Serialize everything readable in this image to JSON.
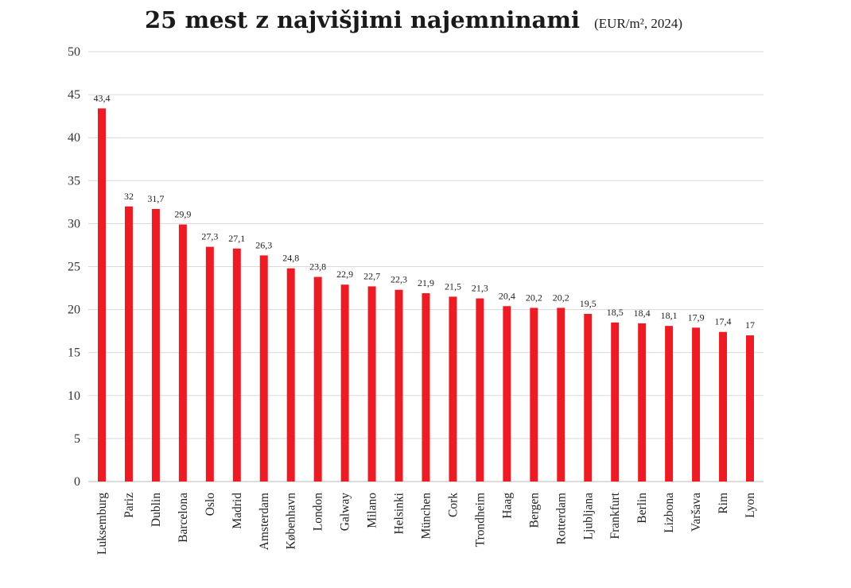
{
  "chart_data": {
    "type": "bar",
    "title": "25 mest z najvišjimi najemninami",
    "subtitle": "(EUR/m², 2024)",
    "xlabel": "",
    "ylabel": "",
    "ylim": [
      0,
      50
    ],
    "yticks": [
      0,
      5,
      10,
      15,
      20,
      25,
      30,
      35,
      40,
      45,
      50
    ],
    "grid": true,
    "bar_color": "#ED1C24",
    "categories": [
      "Luksemburg",
      "Pariz",
      "Dublin",
      "Barcelona",
      "Oslo",
      "Madrid",
      "Amsterdam",
      "København",
      "London",
      "Galway",
      "Milano",
      "Helsinki",
      "München",
      "Cork",
      "Trondheim",
      "Haag",
      "Bergen",
      "Rotterdam",
      "Ljubljana",
      "Frankfurt",
      "Berlin",
      "Lizbona",
      "Varšava",
      "Rim",
      "Lyon"
    ],
    "values": [
      43.4,
      32,
      31.7,
      29.9,
      27.3,
      27.1,
      26.3,
      24.8,
      23.8,
      22.9,
      22.7,
      22.3,
      21.9,
      21.5,
      21.3,
      20.4,
      20.2,
      20.2,
      19.5,
      18.5,
      18.4,
      18.1,
      17.9,
      17.4,
      17
    ],
    "value_labels": [
      "43,4",
      "32",
      "31,7",
      "29,9",
      "27,3",
      "27,1",
      "26,3",
      "24,8",
      "23,8",
      "22,9",
      "22,7",
      "22,3",
      "21,9",
      "21,5",
      "21,3",
      "20,4",
      "20,2",
      "20,2",
      "19,5",
      "18,5",
      "18,4",
      "18,1",
      "17,9",
      "17,4",
      "17"
    ]
  }
}
